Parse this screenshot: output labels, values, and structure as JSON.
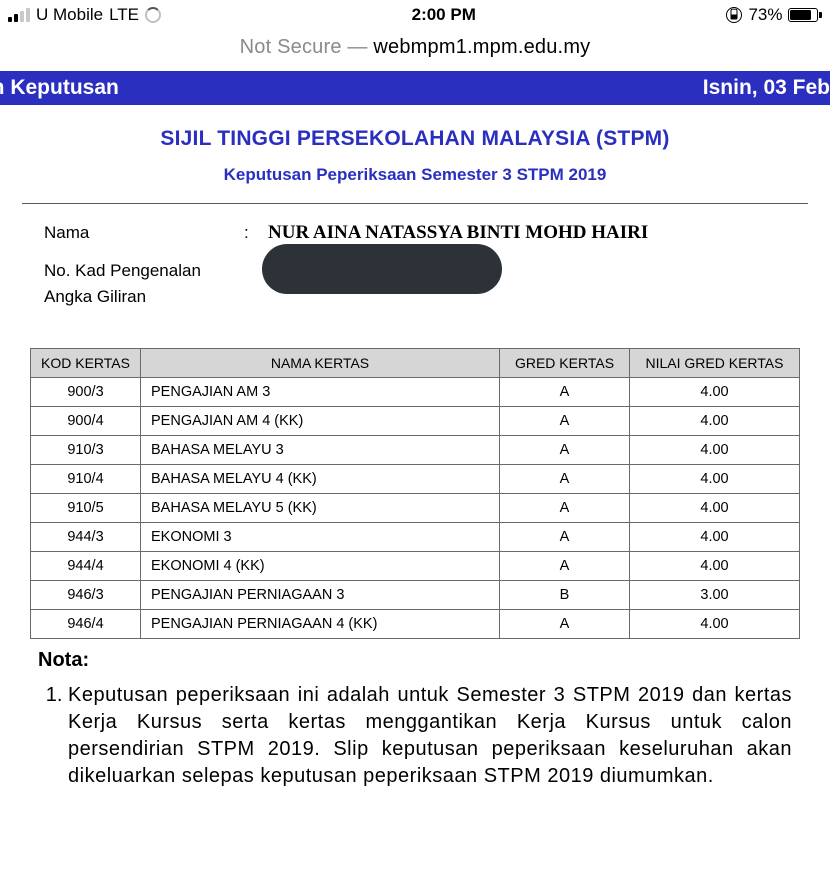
{
  "status": {
    "carrier": "U Mobile",
    "network": "LTE",
    "time": "2:00 PM",
    "battery_pct": "73%"
  },
  "url": {
    "prefix": "Not Secure — ",
    "host": "webmpm1.mpm.edu.my"
  },
  "strip": {
    "left": "an Keputusan",
    "right": "Isnin, 03 Feb"
  },
  "header": {
    "title": "SIJIL TINGGI PERSEKOLAHAN MALAYSIA (STPM)",
    "subtitle": "Keputusan Peperiksaan Semester 3 STPM 2019"
  },
  "info": {
    "name_label": "Nama",
    "name_value": "NUR AINA NATASSYA BINTI MOHD HAIRI",
    "ic_label": "No. Kad Pengenalan",
    "ag_label": "Angka Giliran",
    "colon": ":"
  },
  "table": {
    "headers": {
      "code": "KOD KERTAS",
      "name": "NAMA KERTAS",
      "grade": "GRED KERTAS",
      "ngrade": "NILAI GRED KERTAS"
    },
    "rows": [
      {
        "code": "900/3",
        "name": "PENGAJIAN AM 3",
        "grade": "A",
        "ngrade": "4.00"
      },
      {
        "code": "900/4",
        "name": "PENGAJIAN AM 4 (KK)",
        "grade": "A",
        "ngrade": "4.00"
      },
      {
        "code": "910/3",
        "name": "BAHASA MELAYU 3",
        "grade": "A",
        "ngrade": "4.00"
      },
      {
        "code": "910/4",
        "name": "BAHASA MELAYU 4 (KK)",
        "grade": "A",
        "ngrade": "4.00"
      },
      {
        "code": "910/5",
        "name": "BAHASA MELAYU 5 (KK)",
        "grade": "A",
        "ngrade": "4.00"
      },
      {
        "code": "944/3",
        "name": "EKONOMI 3",
        "grade": "A",
        "ngrade": "4.00"
      },
      {
        "code": "944/4",
        "name": "EKONOMI 4 (KK)",
        "grade": "A",
        "ngrade": "4.00"
      },
      {
        "code": "946/3",
        "name": "PENGAJIAN PERNIAGAAN 3",
        "grade": "B",
        "ngrade": "3.00"
      },
      {
        "code": "946/4",
        "name": "PENGAJIAN PERNIAGAAN 4 (KK)",
        "grade": "A",
        "ngrade": "4.00"
      }
    ]
  },
  "notes": {
    "heading": "Nota:",
    "item1": "Keputusan peperiksaan ini adalah untuk Semester 3 STPM 2019 dan kertas Kerja Kursus serta kertas menggantikan Kerja Kursus untuk calon persendirian STPM 2019. Slip keputusan peperiksaan keseluruhan akan dikeluarkan selepas keputusan peperiksaan STPM 2019 diumumkan."
  },
  "colors": {
    "brand_blue": "#2b2fc0",
    "header_grey": "#d6d6d6",
    "border_grey": "#6a6a6a",
    "redact": "#2d3238"
  }
}
